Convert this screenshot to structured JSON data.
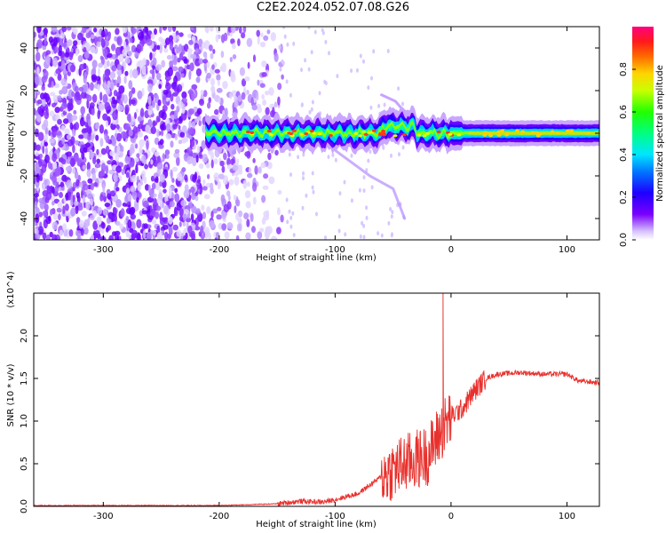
{
  "title": "C2E2.2024.052.07.08.G26",
  "colors": {
    "snr_line": "#e8302c",
    "spectrogram_background": "#ffffff"
  },
  "chart_data": [
    {
      "type": "heatmap",
      "title": "C2E2.2024.052.07.08.G26",
      "xlabel": "Height of straight line (km)",
      "ylabel": "Frequency (Hz)",
      "xlim": [
        -360,
        128
      ],
      "ylim": [
        -50,
        50
      ],
      "x_ticks": [
        -300,
        -200,
        -100,
        0,
        100
      ],
      "y_ticks": [
        -40,
        -20,
        0,
        20,
        40
      ],
      "colorbar": {
        "label": "Normalized spectral amplitude",
        "range": [
          0.0,
          1.0
        ],
        "ticks": [
          0.0,
          0.2,
          0.4,
          0.6,
          0.8
        ],
        "colormap": "rainbow (violet to magenta-red)"
      },
      "features": {
        "noise_region_x": [
          -360,
          -150
        ],
        "signal_start_x": -212,
        "signal_center_frequency": 0,
        "signal_band_halfwidth_hz": 2,
        "branch_upper": {
          "x": [
            -60,
            -48,
            -40,
            -35
          ],
          "y": [
            18,
            15,
            10,
            5
          ]
        },
        "branch_lower": {
          "x": [
            -100,
            -85,
            -70,
            -50,
            -40
          ],
          "y": [
            -8,
            -14,
            -20,
            -26,
            -40
          ]
        }
      }
    },
    {
      "type": "line",
      "xlabel": "Height of straight line (km)",
      "ylabel": "SNR (10 * v/v)",
      "y_multiplier_label": "(x10^4)",
      "xlim": [
        -360,
        128
      ],
      "ylim": [
        0,
        2.5
      ],
      "x_ticks": [
        -300,
        -200,
        -100,
        0,
        100
      ],
      "y_ticks": [
        0.0,
        0.5,
        1.0,
        1.5,
        2.0
      ],
      "series": [
        {
          "x": [
            -360,
            -300,
            -200,
            -150,
            -130,
            -110,
            -100,
            -80,
            -60,
            -40,
            -30,
            -20,
            -10,
            0,
            10,
            20,
            30,
            40,
            60,
            80,
            100,
            110,
            128
          ],
          "y": [
            0.01,
            0.01,
            0.01,
            0.03,
            0.06,
            0.05,
            0.08,
            0.15,
            0.35,
            0.5,
            0.55,
            0.6,
            0.85,
            1.05,
            1.15,
            1.35,
            1.5,
            1.55,
            1.57,
            1.55,
            1.55,
            1.47,
            1.45
          ]
        }
      ]
    }
  ]
}
